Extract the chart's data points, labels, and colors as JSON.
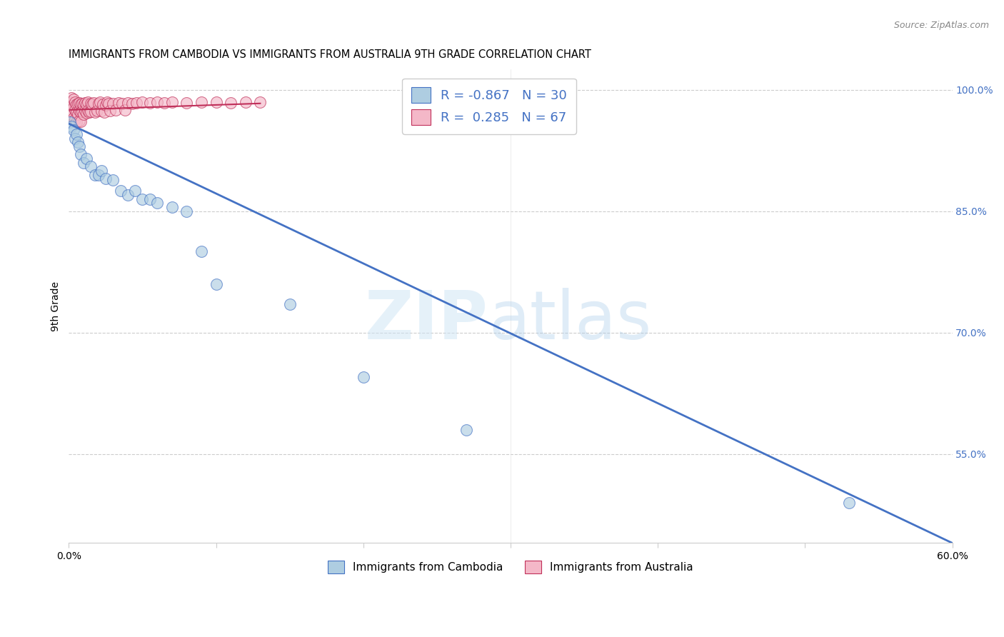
{
  "title": "IMMIGRANTS FROM CAMBODIA VS IMMIGRANTS FROM AUSTRALIA 9TH GRADE CORRELATION CHART",
  "source": "Source: ZipAtlas.com",
  "ylabel": "9th Grade",
  "legend_label_blue": "Immigrants from Cambodia",
  "legend_label_pink": "Immigrants from Australia",
  "R_blue": -0.867,
  "N_blue": 30,
  "R_pink": 0.285,
  "N_pink": 67,
  "blue_color": "#aecde1",
  "blue_edge_color": "#4472c4",
  "pink_color": "#f4b8c8",
  "pink_edge_color": "#c0305a",
  "blue_line_color": "#4472c4",
  "pink_line_color": "#c0305a",
  "background_color": "#ffffff",
  "grid_color": "#cccccc",
  "xlim": [
    0.0,
    0.6
  ],
  "ylim": [
    0.44,
    1.025
  ],
  "yticks_right": [
    0.55,
    0.7,
    0.85,
    1.0
  ],
  "ytick_right_labels": [
    "55.0%",
    "70.0%",
    "85.0%",
    "100.0%"
  ],
  "blue_scatter_x": [
    0.001,
    0.002,
    0.003,
    0.004,
    0.005,
    0.006,
    0.007,
    0.008,
    0.01,
    0.012,
    0.015,
    0.018,
    0.02,
    0.022,
    0.025,
    0.03,
    0.035,
    0.04,
    0.045,
    0.05,
    0.055,
    0.06,
    0.07,
    0.08,
    0.09,
    0.1,
    0.15,
    0.2,
    0.27,
    0.53
  ],
  "blue_scatter_y": [
    0.96,
    0.955,
    0.95,
    0.94,
    0.945,
    0.935,
    0.93,
    0.92,
    0.91,
    0.915,
    0.905,
    0.895,
    0.895,
    0.9,
    0.89,
    0.888,
    0.875,
    0.87,
    0.875,
    0.865,
    0.865,
    0.86,
    0.855,
    0.85,
    0.8,
    0.76,
    0.735,
    0.645,
    0.58,
    0.49
  ],
  "pink_scatter_x": [
    0.001,
    0.001,
    0.002,
    0.002,
    0.002,
    0.003,
    0.003,
    0.003,
    0.004,
    0.004,
    0.004,
    0.005,
    0.005,
    0.005,
    0.006,
    0.006,
    0.007,
    0.007,
    0.007,
    0.008,
    0.008,
    0.008,
    0.009,
    0.009,
    0.01,
    0.01,
    0.011,
    0.011,
    0.012,
    0.012,
    0.013,
    0.013,
    0.014,
    0.015,
    0.015,
    0.016,
    0.017,
    0.018,
    0.019,
    0.02,
    0.021,
    0.022,
    0.023,
    0.024,
    0.025,
    0.026,
    0.027,
    0.028,
    0.03,
    0.032,
    0.034,
    0.036,
    0.038,
    0.04,
    0.043,
    0.046,
    0.05,
    0.055,
    0.06,
    0.065,
    0.07,
    0.08,
    0.09,
    0.1,
    0.11,
    0.12,
    0.13
  ],
  "pink_scatter_y": [
    0.985,
    0.975,
    0.99,
    0.98,
    0.97,
    0.988,
    0.978,
    0.965,
    0.985,
    0.975,
    0.963,
    0.982,
    0.972,
    0.96,
    0.983,
    0.97,
    0.984,
    0.974,
    0.962,
    0.982,
    0.972,
    0.961,
    0.983,
    0.973,
    0.981,
    0.97,
    0.984,
    0.974,
    0.982,
    0.971,
    0.985,
    0.974,
    0.972,
    0.983,
    0.973,
    0.982,
    0.984,
    0.972,
    0.974,
    0.983,
    0.985,
    0.974,
    0.982,
    0.972,
    0.981,
    0.985,
    0.983,
    0.974,
    0.983,
    0.975,
    0.984,
    0.983,
    0.975,
    0.984,
    0.983,
    0.984,
    0.985,
    0.984,
    0.985,
    0.984,
    0.985,
    0.984,
    0.985,
    0.985,
    0.984,
    0.985,
    0.985
  ],
  "blue_line_x0": 0.0,
  "blue_line_x1": 0.6,
  "blue_line_y0": 0.958,
  "blue_line_y1": 0.44,
  "pink_line_x0": 0.001,
  "pink_line_x1": 0.13,
  "pink_line_y0": 0.975,
  "pink_line_y1": 0.983
}
